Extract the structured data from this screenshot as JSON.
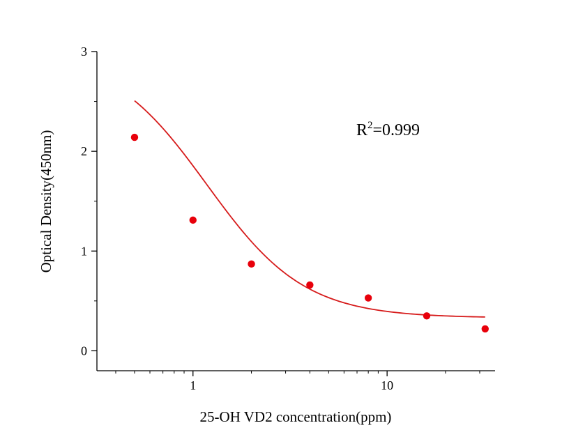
{
  "chart_data": {
    "type": "scatter",
    "xlabel": "25-OH VD2 concentration(ppm)",
    "ylabel": "Optical Density(450nm)",
    "x_scale": "log",
    "xlim": [
      0.32,
      36
    ],
    "ylim": [
      -0.2,
      3
    ],
    "x_ticks": [
      1,
      10
    ],
    "x_tick_labels": [
      "1",
      "10"
    ],
    "y_ticks": [
      0,
      1,
      2,
      3
    ],
    "y_tick_labels": [
      "0",
      "1",
      "2",
      "3"
    ],
    "grid": false,
    "annotation": {
      "base": "R",
      "sup": "2",
      "rest": "=0.999"
    },
    "points": {
      "x": [
        0.5,
        1,
        2,
        4,
        8,
        16,
        32
      ],
      "y": [
        2.14,
        1.31,
        0.87,
        0.66,
        0.53,
        0.35,
        0.22
      ],
      "color": "#e8000b"
    },
    "fit_curve": {
      "model": "4PL",
      "top": 3.0,
      "bottom": 0.33,
      "ec50": 1.18,
      "hill": 1.73,
      "x_range": [
        0.5,
        32
      ],
      "color": "#d61a1a"
    }
  }
}
